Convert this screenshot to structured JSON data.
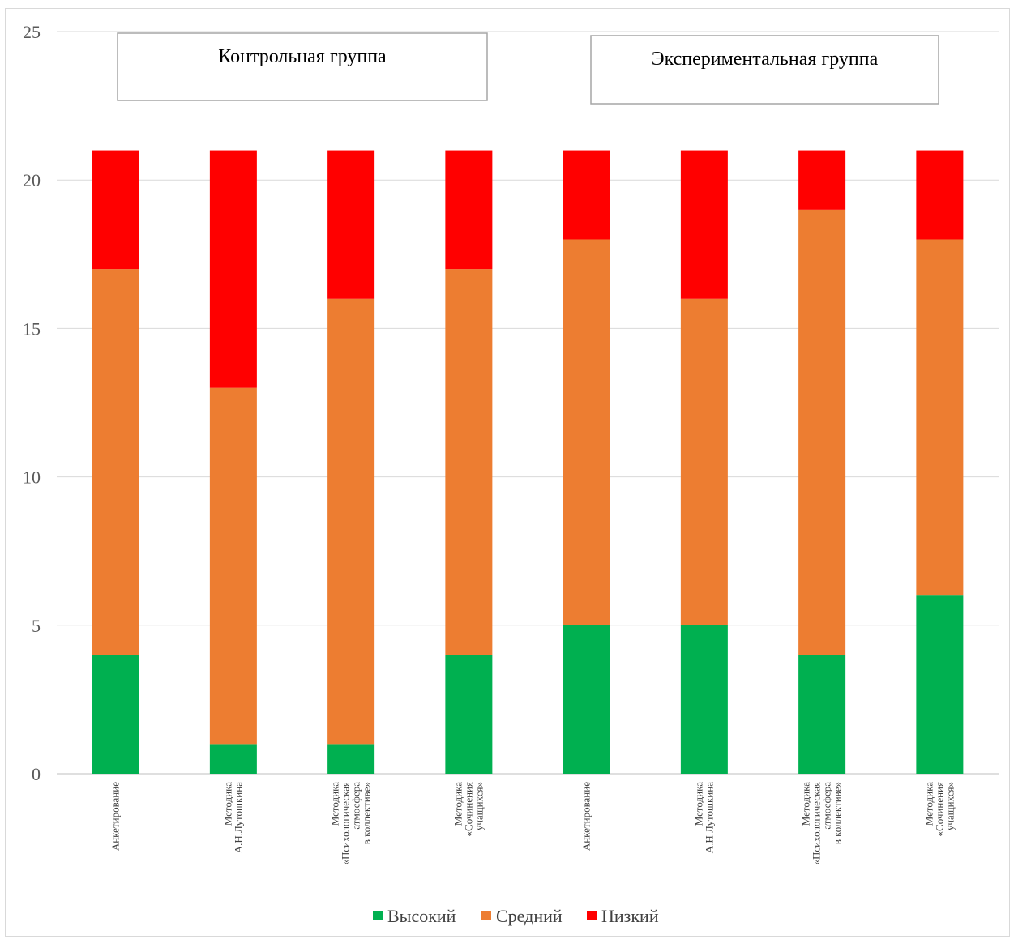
{
  "chart_data": {
    "type": "bar",
    "stacked": true,
    "categories": [
      "Анкетирование",
      "Методика А.Н.Лутошкина",
      "Методика «Психологическая атмосфера в коллективе»",
      "Методика «Сочинения учащихся»",
      "Анкетирование",
      "Методика А.Н.Лутошкина",
      "Методика «Психологическая атмосфера в коллективе»",
      "Методика «Сочинения учащихся»"
    ],
    "category_lines": [
      [
        "Анкетирование"
      ],
      [
        "Методика",
        "А.Н.Лутошкина"
      ],
      [
        "Методика",
        "«Психологическая",
        "атмосфера",
        "в коллективе»"
      ],
      [
        "Методика",
        "«Сочинения",
        "учащихся»"
      ],
      [
        "Анкетирование"
      ],
      [
        "Методика",
        "А.Н.Лутошкина"
      ],
      [
        "Методика",
        "«Психологическая",
        "атмосфера",
        "в коллективе»"
      ],
      [
        "Методика",
        "«Сочинения",
        "учащихся»"
      ]
    ],
    "series": [
      {
        "name": "Высокий",
        "color": "#00b050",
        "values": [
          4,
          1,
          1,
          4,
          5,
          5,
          4,
          6
        ]
      },
      {
        "name": "Средний",
        "color": "#ed7d31",
        "values": [
          13,
          12,
          15,
          13,
          13,
          11,
          15,
          12
        ]
      },
      {
        "name": "Низкий",
        "color": "#ff0000",
        "values": [
          4,
          8,
          5,
          4,
          3,
          5,
          2,
          3
        ]
      }
    ],
    "ylim": [
      0,
      25
    ],
    "yticks": [
      0,
      5,
      10,
      15,
      20,
      25
    ],
    "grid": true,
    "legend_position": "bottom",
    "annotations": [
      "Контрольная группа",
      "Экспериментальная группа"
    ]
  }
}
